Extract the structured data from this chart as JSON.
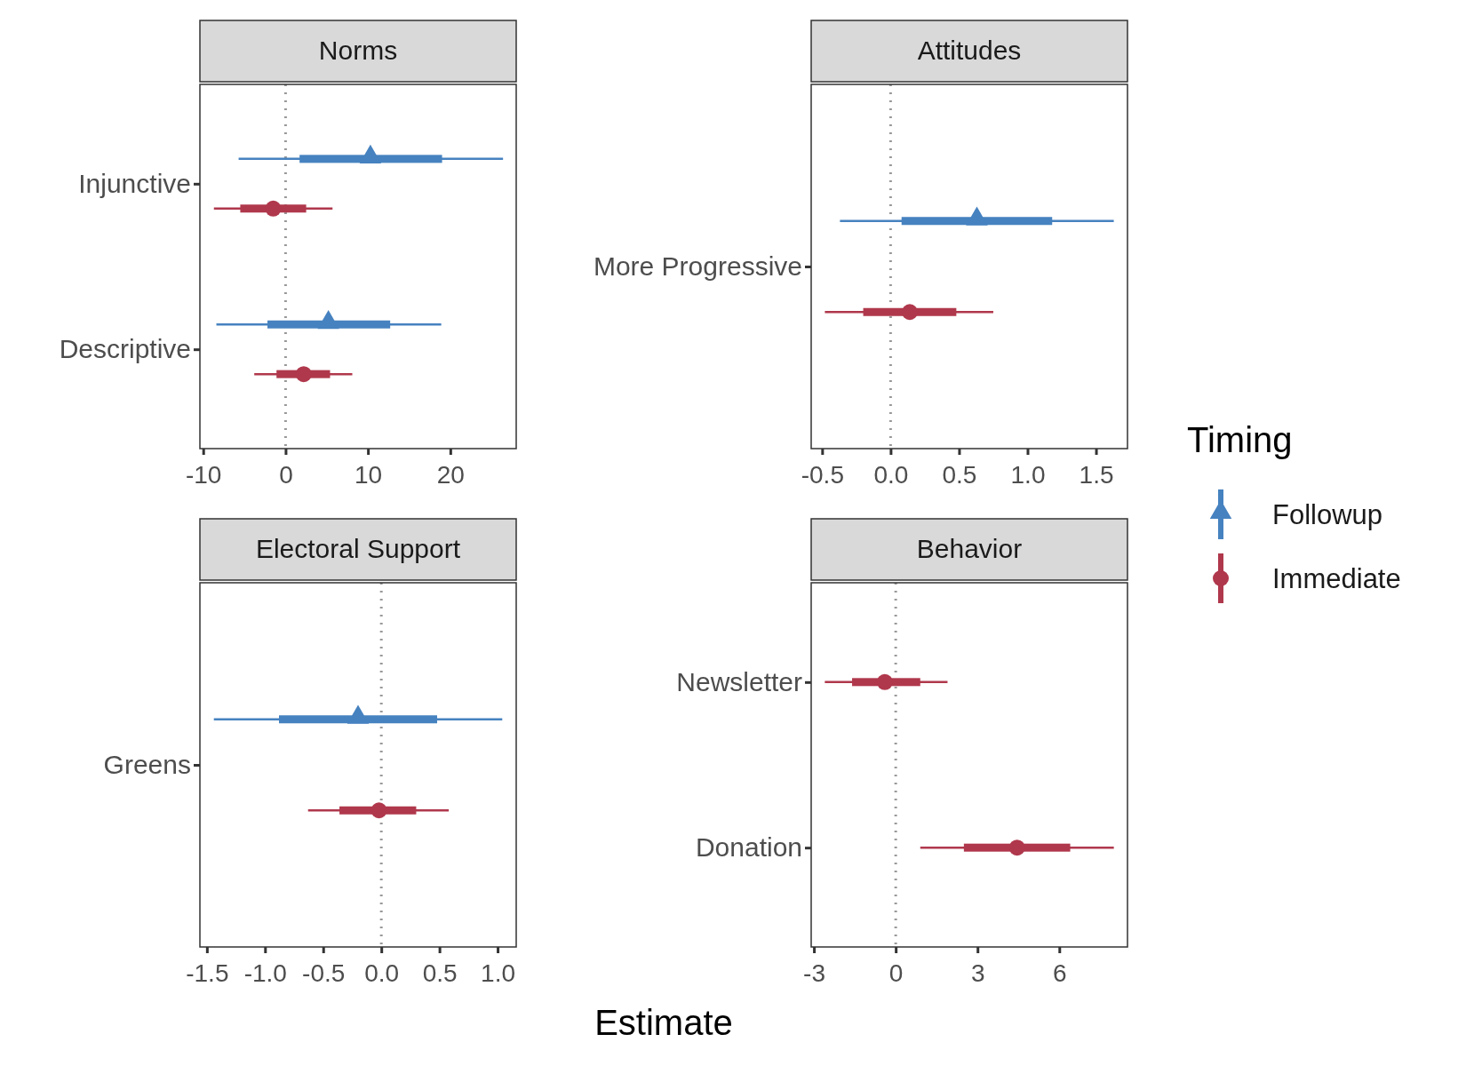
{
  "chart_data": [
    {
      "type": "box",
      "orientation": "horizontal",
      "title": "Norms",
      "categories": [
        "Injunctive",
        "Descriptive"
      ],
      "xlim": [
        -10.4,
        28
      ],
      "xticks": [
        -10,
        0,
        10,
        20
      ],
      "ref_lines": [
        {
          "axis": "x",
          "value": 0,
          "color": "#999999",
          "line_style": "dotted"
        }
      ],
      "series": [
        {
          "color": "#4682c0",
          "marker": "triangle",
          "boxes": [
            {
              "low": -5.7,
              "q1": 1.7,
              "median": 10.3,
              "q3": 19.0,
              "high": 26.4
            },
            {
              "low": -8.4,
              "q1": -2.2,
              "median": 5.2,
              "q3": 12.7,
              "high": 18.9
            }
          ]
        },
        {
          "color": "#b0384c",
          "marker": "circle",
          "boxes": [
            {
              "low": -8.7,
              "q1": -5.5,
              "median": -1.5,
              "q3": 2.5,
              "high": 5.7
            },
            {
              "low": -3.8,
              "q1": -1.1,
              "median": 2.2,
              "q3": 5.4,
              "high": 8.1
            }
          ]
        }
      ]
    },
    {
      "type": "box",
      "orientation": "horizontal",
      "title": "Attitudes",
      "categories": [
        "More Progressive"
      ],
      "xlim": [
        -0.58,
        1.73
      ],
      "xticks": [
        -0.5,
        {
          "value": 0,
          "label": "0.0"
        },
        0.5,
        {
          "value": 1,
          "label": "1.0"
        },
        1.5
      ],
      "ref_lines": [
        {
          "axis": "x",
          "value": 0,
          "color": "#999999",
          "line_style": "dotted"
        }
      ],
      "legend": "right",
      "legend_title": "Timing",
      "series": [
        {
          "name": "Followup",
          "color": "#4682c0",
          "marker": "triangle",
          "boxes": [
            {
              "low": -0.37,
              "q1": 0.08,
              "median": 0.63,
              "q3": 1.18,
              "high": 1.63
            }
          ]
        },
        {
          "name": "Immediate",
          "color": "#b0384c",
          "marker": "circle",
          "boxes": [
            {
              "low": -0.48,
              "q1": -0.2,
              "median": 0.14,
              "q3": 0.48,
              "high": 0.75
            }
          ]
        }
      ]
    },
    {
      "type": "box",
      "orientation": "horizontal",
      "title": "Electoral Support",
      "categories": [
        "Greens"
      ],
      "xlim": [
        -1.56,
        1.16
      ],
      "xticks": [
        -1.5,
        {
          "value": -1,
          "label": "-1.0"
        },
        -0.5,
        {
          "value": 0,
          "label": "0.0"
        },
        0.5,
        {
          "value": 1,
          "label": "1.0"
        }
      ],
      "ref_lines": [
        {
          "axis": "x",
          "value": 0,
          "color": "#999999",
          "line_style": "dotted"
        }
      ],
      "xlabel": "Estimate",
      "series": [
        {
          "color": "#4682c0",
          "marker": "triangle",
          "boxes": [
            {
              "low": -1.44,
              "q1": -0.88,
              "median": -0.2,
              "q3": 0.48,
              "high": 1.04
            }
          ]
        },
        {
          "color": "#b0384c",
          "marker": "circle",
          "boxes": [
            {
              "low": -0.63,
              "q1": -0.36,
              "median": -0.02,
              "q3": 0.3,
              "high": 0.58
            }
          ]
        }
      ]
    },
    {
      "type": "box",
      "orientation": "horizontal",
      "title": "Behavior",
      "categories": [
        "Newsletter",
        "Donation"
      ],
      "xlim": [
        -3.1,
        8.5
      ],
      "xticks": [
        -3,
        0,
        3,
        6
      ],
      "ref_lines": [
        {
          "axis": "x",
          "value": 0,
          "color": "#999999",
          "line_style": "dotted"
        }
      ],
      "series": [
        {
          "color": "#b0384c",
          "marker": "circle",
          "boxes": [
            {
              "low": -2.6,
              "q1": -1.6,
              "median": -0.4,
              "q3": 0.9,
              "high": 1.9
            },
            {
              "low": 0.9,
              "q1": 2.5,
              "median": 4.45,
              "q3": 6.4,
              "high": 8.0
            }
          ]
        }
      ]
    }
  ]
}
